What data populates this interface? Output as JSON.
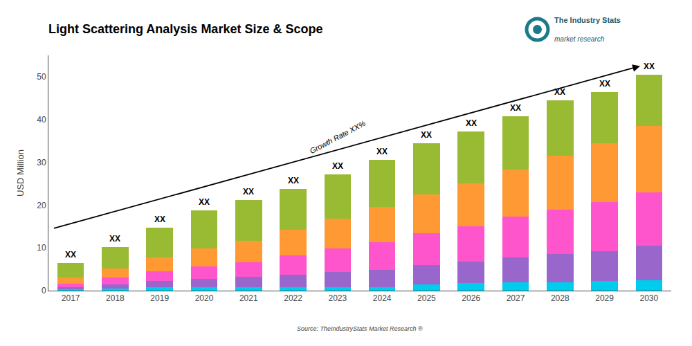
{
  "chart_data": {
    "type": "bar",
    "stacked": true,
    "title": "Light Scattering Analysis Market Size & Scope",
    "ylabel": "USD Million",
    "categories": [
      "2017",
      "2018",
      "2019",
      "2020",
      "2021",
      "2022",
      "2023",
      "2024",
      "2025",
      "2026",
      "2027",
      "2028",
      "2029",
      "2030"
    ],
    "series": [
      {
        "color": "#00CCEE",
        "values": [
          0.3,
          0.5,
          0.8,
          0.8,
          0.8,
          0.8,
          0.8,
          0.8,
          1.5,
          1.8,
          2.0,
          2.0,
          2.2,
          2.5
        ]
      },
      {
        "color": "#9966CC",
        "values": [
          0.5,
          1.0,
          1.5,
          2.0,
          2.4,
          3.0,
          3.5,
          4.0,
          4.5,
          5.0,
          5.8,
          6.5,
          7.0,
          8.0
        ]
      },
      {
        "color": "#FF55CC",
        "values": [
          0.8,
          1.5,
          2.2,
          2.8,
          3.5,
          4.5,
          5.5,
          6.5,
          7.5,
          8.2,
          9.5,
          10.5,
          11.5,
          12.5
        ]
      },
      {
        "color": "#FF9933",
        "values": [
          1.4,
          2.2,
          3.3,
          4.2,
          5.0,
          6.0,
          7.0,
          8.2,
          9.0,
          10.0,
          11.0,
          12.5,
          13.8,
          15.5
        ]
      },
      {
        "color": "#99BB33",
        "values": [
          3.5,
          5.0,
          7.0,
          9.0,
          9.5,
          9.5,
          10.4,
          11.0,
          12.0,
          12.2,
          12.5,
          13.0,
          12.0,
          12.0
        ]
      }
    ],
    "ylim": [
      0,
      55
    ],
    "yticks": [
      0,
      10,
      20,
      30,
      40,
      50
    ],
    "grid": false,
    "annotations": [
      {
        "text": "XX",
        "x": "2017"
      },
      {
        "text": "XX",
        "x": "2018"
      },
      {
        "text": "XX",
        "x": "2019"
      },
      {
        "text": "XX",
        "x": "2020"
      },
      {
        "text": "XX",
        "x": "2021"
      },
      {
        "text": "XX",
        "x": "2022"
      },
      {
        "text": "XX",
        "x": "2023"
      },
      {
        "text": "XX",
        "x": "2024"
      },
      {
        "text": "XX",
        "x": "2025"
      },
      {
        "text": "XX",
        "x": "2026"
      },
      {
        "text": "XX",
        "x": "2027"
      },
      {
        "text": "XX",
        "x": "2028"
      },
      {
        "text": "XX",
        "x": "2029"
      },
      {
        "text": "XX",
        "x": "2030"
      },
      {
        "text": "Growth Rate XX%"
      },
      {
        "text": "Source: TheIndustryStats Market Research ®"
      },
      {
        "text": "The Industry Stats"
      },
      {
        "text": "market research"
      }
    ]
  }
}
